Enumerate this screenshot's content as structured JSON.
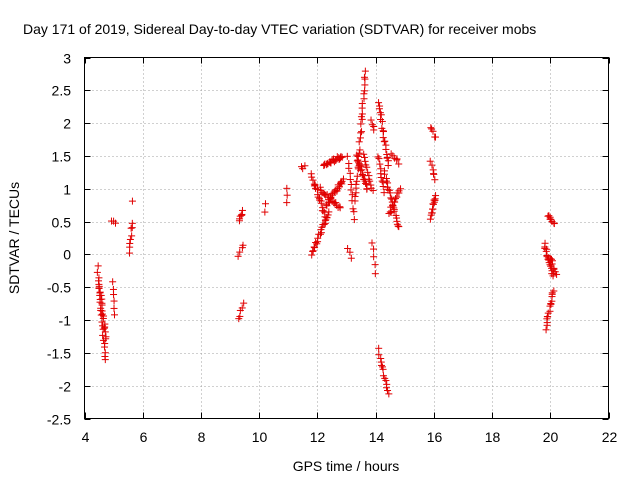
{
  "chart_data": {
    "type": "scatter",
    "title": "Day 171 of 2019, Sidereal Day-to-day VTEC variation (SDTVAR) for receiver mobs",
    "xlabel": "GPS time / hours",
    "ylabel": "SDTVAR / TECUs",
    "xlim": [
      4,
      22
    ],
    "ylim": [
      -2.5,
      3
    ],
    "xticks": [
      4,
      6,
      8,
      10,
      12,
      14,
      16,
      18,
      20,
      22
    ],
    "xtick_labels": [
      "4",
      "6",
      "8",
      "10",
      "12",
      "14",
      "16",
      "18",
      "20",
      "22"
    ],
    "yticks": [
      -2.5,
      -2,
      -1.5,
      -1,
      -0.5,
      0,
      0.5,
      1,
      1.5,
      2,
      2.5,
      3
    ],
    "ytick_labels": [
      "-2.5",
      "-2",
      "-1.5",
      "-1",
      "-0.5",
      "0",
      "0.5",
      "1",
      "1.5",
      "2",
      "2.5",
      "3"
    ],
    "grid": true,
    "marker": "+",
    "color": "#e00000",
    "segments": [
      {
        "t0": 4.45,
        "t1": 4.72,
        "v0": -0.2,
        "v1": -1.62,
        "n": 22
      },
      {
        "t0": 4.5,
        "t1": 4.75,
        "v0": -0.45,
        "v1": -1.3,
        "n": 18
      },
      {
        "t0": 4.95,
        "t1": 5.05,
        "v0": -0.4,
        "v1": -0.95,
        "n": 6
      },
      {
        "t0": 4.95,
        "t1": 5.05,
        "v0": 0.48,
        "v1": 0.5,
        "n": 3
      },
      {
        "t0": 5.55,
        "t1": 5.65,
        "v0": 0.05,
        "v1": 0.5,
        "n": 8
      },
      {
        "t0": 5.65,
        "t1": 5.65,
        "v0": 0.82,
        "v1": 0.82,
        "n": 1
      },
      {
        "t0": 9.3,
        "t1": 9.45,
        "v0": 0.5,
        "v1": 0.65,
        "n": 6
      },
      {
        "t0": 9.3,
        "t1": 9.45,
        "v0": 0.0,
        "v1": 0.15,
        "n": 4
      },
      {
        "t0": 9.3,
        "t1": 9.45,
        "v0": -1.0,
        "v1": -0.75,
        "n": 5
      },
      {
        "t0": 10.2,
        "t1": 10.2,
        "v0": 0.62,
        "v1": 0.78,
        "n": 2
      },
      {
        "t0": 10.95,
        "t1": 10.95,
        "v0": 0.78,
        "v1": 0.98,
        "n": 3
      },
      {
        "t0": 11.45,
        "t1": 11.55,
        "v0": 1.32,
        "v1": 1.35,
        "n": 3
      },
      {
        "t0": 11.8,
        "t1": 12.4,
        "v0": 0.0,
        "v1": 0.65,
        "n": 22
      },
      {
        "t0": 11.8,
        "t1": 12.3,
        "v0": 1.2,
        "v1": 0.55,
        "n": 20
      },
      {
        "t0": 12.2,
        "t1": 12.85,
        "v0": 1.35,
        "v1": 1.5,
        "n": 26
      },
      {
        "t0": 12.3,
        "t1": 12.9,
        "v0": 0.75,
        "v1": 1.15,
        "n": 22
      },
      {
        "t0": 12.1,
        "t1": 12.8,
        "v0": 1.0,
        "v1": 0.7,
        "n": 18
      },
      {
        "t0": 13.05,
        "t1": 13.25,
        "v0": 1.5,
        "v1": 0.55,
        "n": 12
      },
      {
        "t0": 13.05,
        "t1": 13.15,
        "v0": 0.1,
        "v1": -0.05,
        "n": 3
      },
      {
        "t0": 13.3,
        "t1": 13.65,
        "v0": 0.8,
        "v1": 2.78,
        "n": 30
      },
      {
        "t0": 13.35,
        "t1": 13.7,
        "v0": 1.5,
        "v1": 1.0,
        "n": 20
      },
      {
        "t0": 13.6,
        "t1": 13.9,
        "v0": 1.55,
        "v1": 0.95,
        "n": 12
      },
      {
        "t0": 13.85,
        "t1": 13.95,
        "v0": 2.05,
        "v1": 1.9,
        "n": 4
      },
      {
        "t0": 13.9,
        "t1": 14.0,
        "v0": 0.2,
        "v1": -0.3,
        "n": 5
      },
      {
        "t0": 14.1,
        "t1": 14.45,
        "v0": 2.3,
        "v1": 1.35,
        "n": 20
      },
      {
        "t0": 14.1,
        "t1": 14.3,
        "v0": 1.5,
        "v1": 0.95,
        "n": 10
      },
      {
        "t0": 14.1,
        "t1": 14.45,
        "v0": -1.45,
        "v1": -2.15,
        "n": 14
      },
      {
        "t0": 14.3,
        "t1": 14.8,
        "v0": 1.25,
        "v1": 0.4,
        "n": 22
      },
      {
        "t0": 14.45,
        "t1": 14.85,
        "v0": 0.6,
        "v1": 1.0,
        "n": 14
      },
      {
        "t0": 14.55,
        "t1": 14.8,
        "v0": 1.55,
        "v1": 1.4,
        "n": 6
      },
      {
        "t0": 15.9,
        "t1": 16.05,
        "v0": 1.92,
        "v1": 1.78,
        "n": 5
      },
      {
        "t0": 15.9,
        "t1": 16.05,
        "v0": 1.4,
        "v1": 1.15,
        "n": 6
      },
      {
        "t0": 15.9,
        "t1": 16.05,
        "v0": 0.55,
        "v1": 0.9,
        "n": 14
      },
      {
        "t0": 19.8,
        "t1": 20.1,
        "v0": 0.15,
        "v1": -0.35,
        "n": 18
      },
      {
        "t0": 19.85,
        "t1": 20.1,
        "v0": -1.12,
        "v1": -0.55,
        "n": 16
      },
      {
        "t0": 19.9,
        "t1": 20.15,
        "v0": 0.58,
        "v1": 0.45,
        "n": 8
      },
      {
        "t0": 20.0,
        "t1": 20.2,
        "v0": -0.05,
        "v1": -0.3,
        "n": 8
      }
    ]
  }
}
